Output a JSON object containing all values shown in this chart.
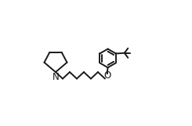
{
  "bg_color": "#ffffff",
  "line_color": "#1a1a1a",
  "lw": 1.4,
  "font_size": 8.5,
  "N_label": "N",
  "O_label": "O",
  "xlim": [
    -0.05,
    1.05
  ],
  "ylim": [
    -0.05,
    1.05
  ]
}
